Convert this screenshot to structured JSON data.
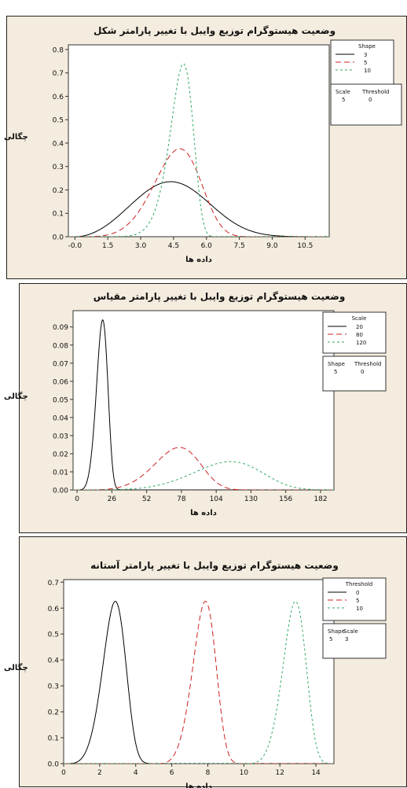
{
  "charts": [
    {
      "title": "وضعیت هیستوگرام توزیع وایبل با تغییر پارامتر شکل",
      "xlabel": "داده ها",
      "ylabel": "چگالی",
      "legend": {
        "title": "Shape",
        "entries": [
          "3",
          "5",
          "10"
        ],
        "fixed_headers": [
          "Scale",
          "Threshold"
        ],
        "fixed_values": [
          "5",
          "0"
        ]
      }
    },
    {
      "title": "وضعیت هیستوگرام توزیع وایبل با تغییر پارامتر مقیاس",
      "xlabel": "داده ها",
      "ylabel": "چگالی",
      "legend": {
        "title": "Scale",
        "entries": [
          "20",
          "80",
          "120"
        ],
        "fixed_headers": [
          "Shape",
          "Threshold"
        ],
        "fixed_values": [
          "5",
          "0"
        ]
      }
    },
    {
      "title": "وضعیت هیستوگرام توزیع وایبل با تغییر پارامتر آستانه",
      "xlabel": "داده ها",
      "ylabel": "چگالی",
      "legend": {
        "title": "Threshold",
        "entries": [
          "0",
          "5",
          "10"
        ],
        "fixed_headers": [
          "Shape",
          "Scale"
        ],
        "fixed_values": [
          "5",
          "3"
        ]
      }
    }
  ],
  "colors": {
    "series": [
      "#000000",
      "#cc2222",
      "#33aa66"
    ],
    "panel_bg": "#f4ecde",
    "plot_bg": "#ffffff"
  },
  "chart_data": [
    {
      "type": "line",
      "title": "وضعیت هیستوگرام توزیع وایبل با تغییر پارامتر شکل",
      "xlabel": "داده ها",
      "ylabel": "چگالی",
      "xlim": [
        -0.3,
        11.6
      ],
      "ylim": [
        0,
        0.82
      ],
      "xticks": [
        0,
        1.5,
        3.0,
        4.5,
        6.0,
        7.5,
        9.0,
        10.5
      ],
      "xtick_labels": [
        "-0.0",
        "1.5",
        "3.0",
        "4.5",
        "6.0",
        "7.5",
        "9.0",
        "10.5"
      ],
      "yticks": [
        0,
        0.1,
        0.2,
        0.3,
        0.4,
        0.5,
        0.6,
        0.7,
        0.8
      ],
      "ytick_labels": [
        "0.0",
        "0.1",
        "0.2",
        "0.3",
        "0.4",
        "0.5",
        "0.6",
        "0.7",
        "0.8"
      ],
      "distribution": "weibull",
      "series": [
        {
          "name": "3",
          "shape": 3,
          "scale": 5,
          "threshold": 0,
          "peak_x": 4.4,
          "peak_y": 0.23
        },
        {
          "name": "5",
          "shape": 5,
          "scale": 5,
          "threshold": 0,
          "peak_x": 4.8,
          "peak_y": 0.37
        },
        {
          "name": "10",
          "shape": 10,
          "scale": 5,
          "threshold": 0,
          "peak_x": 5.0,
          "peak_y": 0.74
        }
      ],
      "legend_position": "right"
    },
    {
      "type": "line",
      "title": "وضعیت هیستوگرام توزیع وایبل با تغییر پارامتر مقیاس",
      "xlabel": "داده ها",
      "ylabel": "چگالی",
      "xlim": [
        -3,
        192
      ],
      "ylim": [
        0,
        0.099
      ],
      "xticks": [
        0,
        26,
        52,
        78,
        104,
        130,
        156,
        182
      ],
      "xtick_labels": [
        "0",
        "26",
        "52",
        "78",
        "104",
        "130",
        "156",
        "182"
      ],
      "yticks": [
        0,
        0.01,
        0.02,
        0.03,
        0.04,
        0.05,
        0.06,
        0.07,
        0.08,
        0.09
      ],
      "ytick_labels": [
        "0.00",
        "0.01",
        "0.02",
        "0.03",
        "0.04",
        "0.05",
        "0.06",
        "0.07",
        "0.08",
        "0.09"
      ],
      "distribution": "weibull",
      "series": [
        {
          "name": "20",
          "shape": 5,
          "scale": 20,
          "threshold": 0,
          "peak_x": 19,
          "peak_y": 0.094
        },
        {
          "name": "80",
          "shape": 5,
          "scale": 80,
          "threshold": 0,
          "peak_x": 76,
          "peak_y": 0.023
        },
        {
          "name": "120",
          "shape": 5,
          "scale": 120,
          "threshold": 0,
          "peak_x": 115,
          "peak_y": 0.016
        }
      ],
      "legend_position": "right"
    },
    {
      "type": "line",
      "title": "وضعیت هیستوگرام توزیع وایبل با تغییر پارامتر آستانه",
      "xlabel": "داده ها",
      "ylabel": "چگالی",
      "xlim": [
        0,
        15
      ],
      "ylim": [
        0,
        0.71
      ],
      "xticks": [
        0,
        2,
        4,
        6,
        8,
        10,
        12,
        14
      ],
      "xtick_labels": [
        "0",
        "2",
        "4",
        "6",
        "8",
        "10",
        "12",
        "14"
      ],
      "yticks": [
        0,
        0.1,
        0.2,
        0.3,
        0.4,
        0.5,
        0.6,
        0.7
      ],
      "ytick_labels": [
        "0.0",
        "0.1",
        "0.2",
        "0.3",
        "0.4",
        "0.5",
        "0.6",
        "0.7"
      ],
      "distribution": "weibull",
      "series": [
        {
          "name": "0",
          "shape": 5,
          "scale": 3,
          "threshold": 0,
          "peak_x": 2.9,
          "peak_y": 0.62
        },
        {
          "name": "5",
          "shape": 5,
          "scale": 3,
          "threshold": 5,
          "peak_x": 7.9,
          "peak_y": 0.62
        },
        {
          "name": "10",
          "shape": 5,
          "scale": 3,
          "threshold": 10,
          "peak_x": 12.9,
          "peak_y": 0.62
        }
      ],
      "legend_position": "right"
    }
  ]
}
